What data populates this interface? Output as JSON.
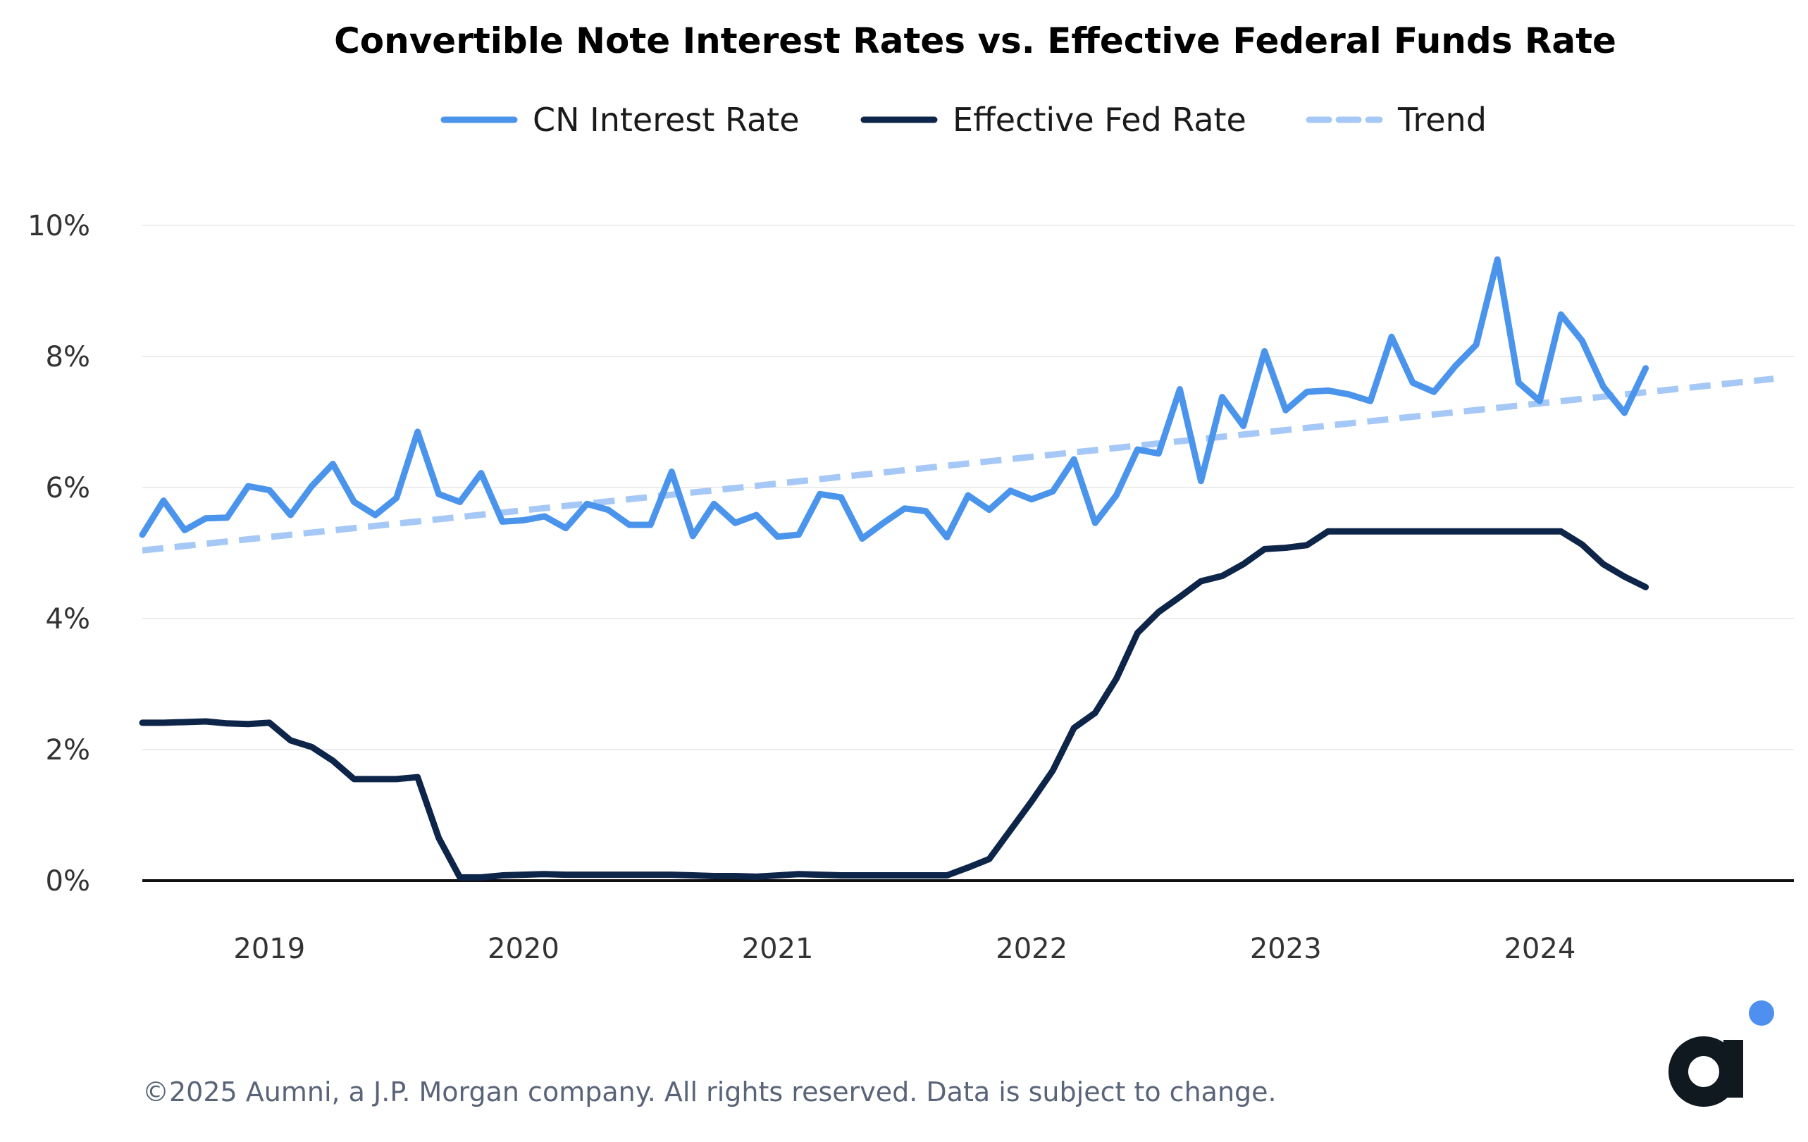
{
  "chart_data": {
    "type": "line",
    "title": "Convertible Note Interest Rates vs. Effective Federal Funds Rate",
    "xlabel": "",
    "ylabel": "",
    "ylim": [
      0,
      10
    ],
    "xlim": [
      2018.5,
      2025.0
    ],
    "grid": true,
    "legend_position": "top-center",
    "y_ticks": [
      0,
      2,
      4,
      6,
      8,
      10
    ],
    "y_tick_labels": [
      "0%",
      "2%",
      "4%",
      "6%",
      "8%",
      "10%"
    ],
    "x_ticks": [
      2019,
      2020,
      2021,
      2022,
      2023,
      2024
    ],
    "x_tick_labels": [
      "2019",
      "2020",
      "2021",
      "2022",
      "2023",
      "2024"
    ],
    "x_start": 2018.5,
    "x_step": 0.08333,
    "series": [
      {
        "name": "CN Interest Rate",
        "color": "#4a94ec",
        "style": "solid",
        "values": [
          5.28,
          5.8,
          5.35,
          5.53,
          5.54,
          6.02,
          5.96,
          5.58,
          6.02,
          6.36,
          5.78,
          5.58,
          5.84,
          6.85,
          5.9,
          5.78,
          6.22,
          5.48,
          5.5,
          5.56,
          5.38,
          5.75,
          5.66,
          5.43,
          5.43,
          6.24,
          5.26,
          5.75,
          5.46,
          5.58,
          5.25,
          5.28,
          5.9,
          5.85,
          5.22,
          5.46,
          5.68,
          5.64,
          5.24,
          5.88,
          5.66,
          5.95,
          5.82,
          5.94,
          6.43,
          5.46,
          5.88,
          6.58,
          6.52,
          7.5,
          6.1,
          7.38,
          6.94,
          8.08,
          7.18,
          7.46,
          7.48,
          7.42,
          7.32,
          8.3,
          7.6,
          7.46,
          7.85,
          8.18,
          9.48,
          7.6,
          7.32,
          8.64,
          8.24,
          7.54,
          7.14,
          7.82
        ]
      },
      {
        "name": "Effective Fed Rate",
        "color": "#0e254a",
        "style": "solid",
        "values": [
          2.41,
          2.41,
          2.42,
          2.43,
          2.4,
          2.39,
          2.41,
          2.14,
          2.04,
          1.83,
          1.55,
          1.55,
          1.55,
          1.58,
          0.65,
          0.05,
          0.05,
          0.08,
          0.09,
          0.1,
          0.09,
          0.09,
          0.09,
          0.09,
          0.09,
          0.09,
          0.08,
          0.07,
          0.07,
          0.06,
          0.08,
          0.1,
          0.09,
          0.08,
          0.08,
          0.08,
          0.08,
          0.08,
          0.08,
          0.2,
          0.33,
          0.77,
          1.21,
          1.68,
          2.33,
          2.56,
          3.08,
          3.78,
          4.1,
          4.33,
          4.57,
          4.65,
          4.83,
          5.06,
          5.08,
          5.12,
          5.33,
          5.33,
          5.33,
          5.33,
          5.33,
          5.33,
          5.33,
          5.33,
          5.33,
          5.33,
          5.33,
          5.33,
          5.13,
          4.83,
          4.64,
          4.48
        ]
      },
      {
        "name": "Trend",
        "color": "#a6c8f6",
        "style": "dashed",
        "values": [
          5.04,
          7.66
        ],
        "x": [
          2018.5,
          2024.92
        ]
      }
    ]
  },
  "footer": {
    "copyright": "©2025 Aumni, a J.P. Morgan company. All rights reserved. Data is subject to change."
  },
  "logo": {
    "name": "aumni-logo",
    "glyph": "a",
    "dot_color": "#4f8ff0",
    "text_color": "#101820"
  }
}
